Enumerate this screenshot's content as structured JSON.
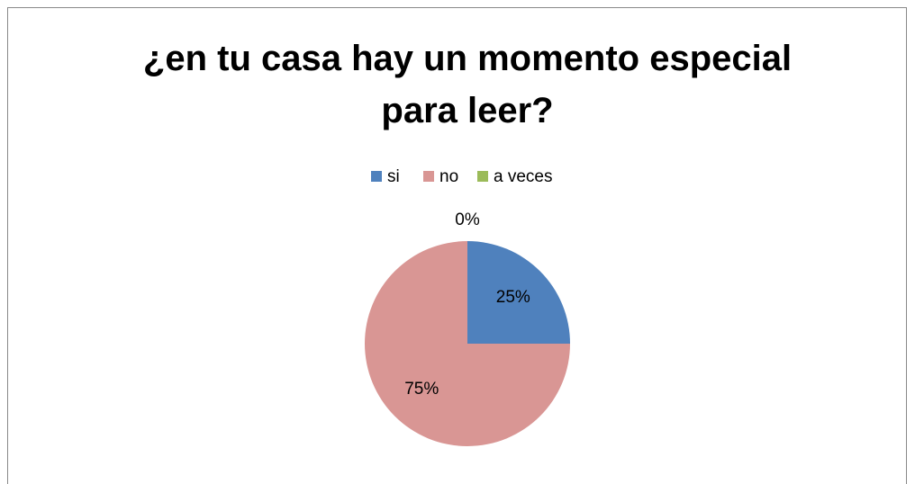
{
  "chart_data": {
    "type": "pie",
    "title": "¿en tu casa hay un momento especial para leer?",
    "categories": [
      "si",
      "no",
      "a veces"
    ],
    "values": [
      25,
      75,
      0
    ],
    "value_labels": [
      "25%",
      "75%",
      "0%"
    ],
    "colors": [
      "#4f81bd",
      "#d99694",
      "#9bbb59"
    ],
    "legend": "top"
  }
}
